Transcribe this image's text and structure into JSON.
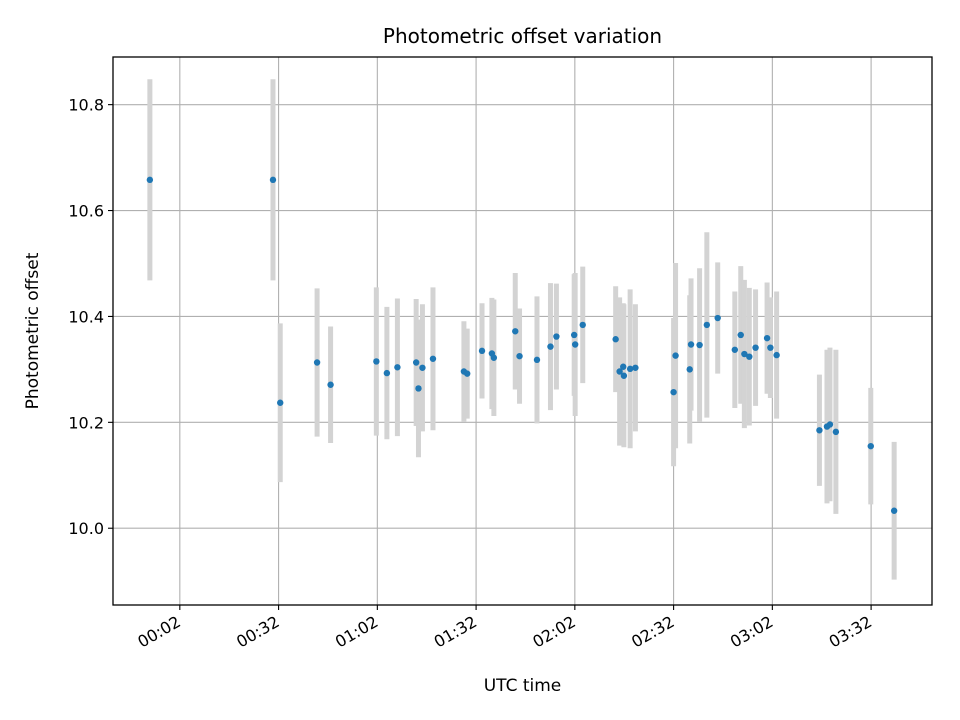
{
  "chart_data": {
    "type": "scatter",
    "title": "Photometric offset variation",
    "xlabel": "UTC time",
    "ylabel": "Photometric offset",
    "x_tick_labels": [
      "00:02",
      "00:32",
      "01:02",
      "01:32",
      "02:02",
      "02:32",
      "03:02",
      "03:32"
    ],
    "x_tick_minutes": [
      2,
      32,
      62,
      92,
      122,
      152,
      182,
      212
    ],
    "xlim_minutes": [
      -18.3,
      230.5
    ],
    "ylim": [
      9.855,
      10.89
    ],
    "y_ticks": [
      10.0,
      10.2,
      10.4,
      10.6,
      10.8
    ],
    "y_tick_labels": [
      "10.0",
      "10.2",
      "10.4",
      "10.6",
      "10.8"
    ],
    "grid": true,
    "point_color": "#1f77b4",
    "errorbar_color": "#d3d3d3",
    "series": [
      {
        "x_minutes": [
          -7.1,
          30.3,
          32.5,
          43.7,
          47.8,
          61.7,
          64.9,
          68.1,
          73.8,
          74.5,
          75.7,
          78.9,
          88.3,
          89.3,
          93.8,
          96.8,
          97.4,
          103.9,
          105.2,
          110.5,
          114.6,
          116.4,
          121.8,
          122.1,
          124.4,
          134.4,
          135.6,
          136.7,
          136.9,
          138.8,
          140.4,
          152.0,
          152.6,
          156.9,
          157.3,
          159.9,
          162.1,
          165.4,
          170.6,
          172.4,
          173.5,
          175.0,
          176.9,
          180.4,
          181.4,
          183.3,
          196.3,
          198.6,
          199.5,
          201.3,
          211.9,
          219.0
        ],
        "y": [
          10.658,
          10.658,
          10.237,
          10.313,
          10.271,
          10.315,
          10.293,
          10.304,
          10.313,
          10.264,
          10.303,
          10.32,
          10.296,
          10.292,
          10.335,
          10.33,
          10.322,
          10.372,
          10.325,
          10.318,
          10.343,
          10.362,
          10.365,
          10.347,
          10.384,
          10.357,
          10.296,
          10.305,
          10.288,
          10.301,
          10.303,
          10.257,
          10.326,
          10.3,
          10.347,
          10.346,
          10.384,
          10.397,
          10.337,
          10.365,
          10.329,
          10.324,
          10.341,
          10.359,
          10.341,
          10.327,
          10.185,
          10.192,
          10.196,
          10.182,
          10.155,
          10.033
        ],
        "yerr": [
          0.19,
          0.19,
          0.15,
          0.14,
          0.11,
          0.14,
          0.125,
          0.13,
          0.12,
          0.13,
          0.12,
          0.135,
          0.095,
          0.085,
          0.09,
          0.105,
          0.11,
          0.11,
          0.09,
          0.12,
          0.12,
          0.1,
          0.115,
          0.135,
          0.11,
          0.1,
          0.14,
          0.12,
          0.135,
          0.15,
          0.12,
          0.14,
          0.175,
          0.14,
          0.125,
          0.145,
          0.175,
          0.105,
          0.11,
          0.13,
          0.14,
          0.13,
          0.11,
          0.105,
          0.095,
          0.12,
          0.105,
          0.145,
          0.145,
          0.155,
          0.11,
          0.13
        ]
      }
    ]
  }
}
